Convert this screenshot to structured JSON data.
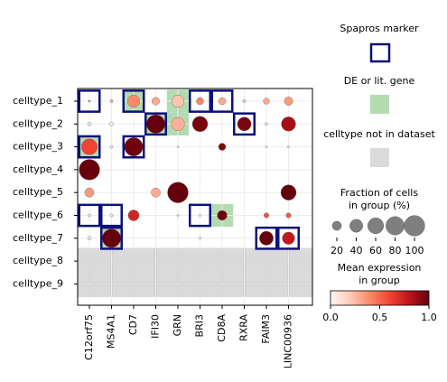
{
  "chart_data": {
    "type": "dotplot",
    "rows": [
      "celltype_1",
      "celltype_2",
      "celltype_3",
      "celltype_4",
      "celltype_5",
      "celltype_6",
      "celltype_7",
      "celltype_8",
      "celltype_9"
    ],
    "columns": [
      "C12orf75",
      "MS4A1",
      "CD7",
      "IFI30",
      "GRN",
      "BRI3",
      "CD8A",
      "RXRA",
      "FAIM3",
      "LINC00936"
    ],
    "dots": [
      {
        "row": "celltype_1",
        "col": "C12orf75",
        "fraction": 1,
        "expression": 0.4
      },
      {
        "row": "celltype_1",
        "col": "MS4A1",
        "fraction": 2,
        "expression": 0.3
      },
      {
        "row": "celltype_1",
        "col": "CD7",
        "fraction": 36,
        "expression": 0.4
      },
      {
        "row": "celltype_1",
        "col": "IFI30",
        "fraction": 14,
        "expression": 0.3
      },
      {
        "row": "celltype_1",
        "col": "GRN",
        "fraction": 36,
        "expression": 0.22
      },
      {
        "row": "celltype_1",
        "col": "BRI3",
        "fraction": 12,
        "expression": 0.42
      },
      {
        "row": "celltype_1",
        "col": "CD8A",
        "fraction": 12,
        "expression": 0.3
      },
      {
        "row": "celltype_1",
        "col": "RXRA",
        "fraction": 2,
        "expression": 0.2
      },
      {
        "row": "celltype_1",
        "col": "FAIM3",
        "fraction": 9,
        "expression": 0.3
      },
      {
        "row": "celltype_1",
        "col": "LINC00936",
        "fraction": 17,
        "expression": 0.35
      },
      {
        "row": "celltype_2",
        "col": "C12orf75",
        "fraction": 3,
        "expression": 0.05
      },
      {
        "row": "celltype_2",
        "col": "MS4A1",
        "fraction": 4,
        "expression": 0.05
      },
      {
        "row": "celltype_2",
        "col": "IFI30",
        "fraction": 80,
        "expression": 1.0
      },
      {
        "row": "celltype_2",
        "col": "GRN",
        "fraction": 42,
        "expression": 0.28
      },
      {
        "row": "celltype_2",
        "col": "BRI3",
        "fraction": 55,
        "expression": 0.96
      },
      {
        "row": "celltype_2",
        "col": "RXRA",
        "fraction": 44,
        "expression": 0.95
      },
      {
        "row": "celltype_2",
        "col": "FAIM3",
        "fraction": 2,
        "expression": 0.1
      },
      {
        "row": "celltype_2",
        "col": "LINC00936",
        "fraction": 48,
        "expression": 0.85
      },
      {
        "row": "celltype_3",
        "col": "C12orf75",
        "fraction": 60,
        "expression": 0.6
      },
      {
        "row": "celltype_3",
        "col": "MS4A1",
        "fraction": 2,
        "expression": 0.05
      },
      {
        "row": "celltype_3",
        "col": "CD7",
        "fraction": 80,
        "expression": 0.98
      },
      {
        "row": "celltype_3",
        "col": "GRN",
        "fraction": 1,
        "expression": 0.05
      },
      {
        "row": "celltype_3",
        "col": "CD8A",
        "fraction": 12,
        "expression": 0.95
      },
      {
        "row": "celltype_3",
        "col": "FAIM3",
        "fraction": 1,
        "expression": 0.05
      },
      {
        "row": "celltype_3",
        "col": "LINC00936",
        "fraction": 1,
        "expression": 0.05
      },
      {
        "row": "celltype_4",
        "col": "C12orf75",
        "fraction": 100,
        "expression": 1.0
      },
      {
        "row": "celltype_5",
        "col": "C12orf75",
        "fraction": 20,
        "expression": 0.35
      },
      {
        "row": "celltype_5",
        "col": "IFI30",
        "fraction": 20,
        "expression": 0.3
      },
      {
        "row": "celltype_5",
        "col": "GRN",
        "fraction": 100,
        "expression": 1.0
      },
      {
        "row": "celltype_5",
        "col": "LINC00936",
        "fraction": 55,
        "expression": 1.0
      },
      {
        "row": "celltype_6",
        "col": "C12orf75",
        "fraction": 2,
        "expression": 0.05
      },
      {
        "row": "celltype_6",
        "col": "MS4A1",
        "fraction": 2,
        "expression": 0.05
      },
      {
        "row": "celltype_6",
        "col": "CD7",
        "fraction": 28,
        "expression": 0.72
      },
      {
        "row": "celltype_6",
        "col": "GRN",
        "fraction": 1,
        "expression": 0.1
      },
      {
        "row": "celltype_6",
        "col": "BRI3",
        "fraction": 1,
        "expression": 0.05
      },
      {
        "row": "celltype_6",
        "col": "CD8A",
        "fraction": 22,
        "expression": 0.98
      },
      {
        "row": "celltype_6",
        "col": "FAIM3",
        "fraction": 6,
        "expression": 0.55
      },
      {
        "row": "celltype_6",
        "col": "LINC00936",
        "fraction": 6,
        "expression": 0.55
      },
      {
        "row": "celltype_7",
        "col": "C12orf75",
        "fraction": 3,
        "expression": 0.05
      },
      {
        "row": "celltype_7",
        "col": "MS4A1",
        "fraction": 80,
        "expression": 1.0
      },
      {
        "row": "celltype_7",
        "col": "BRI3",
        "fraction": 1,
        "expression": 0.05
      },
      {
        "row": "celltype_7",
        "col": "FAIM3",
        "fraction": 45,
        "expression": 1.0
      },
      {
        "row": "celltype_7",
        "col": "LINC00936",
        "fraction": 36,
        "expression": 0.78
      }
    ],
    "spapros_markers": [
      {
        "row": "celltype_1",
        "col": "C12orf75"
      },
      {
        "row": "celltype_1",
        "col": "CD7"
      },
      {
        "row": "celltype_1",
        "col": "BRI3"
      },
      {
        "row": "celltype_1",
        "col": "CD8A"
      },
      {
        "row": "celltype_2",
        "col": "IFI30"
      },
      {
        "row": "celltype_2",
        "col": "RXRA"
      },
      {
        "row": "celltype_3",
        "col": "C12orf75"
      },
      {
        "row": "celltype_3",
        "col": "CD7"
      },
      {
        "row": "celltype_6",
        "col": "C12orf75"
      },
      {
        "row": "celltype_6",
        "col": "MS4A1"
      },
      {
        "row": "celltype_6",
        "col": "BRI3"
      },
      {
        "row": "celltype_7",
        "col": "MS4A1"
      },
      {
        "row": "celltype_7",
        "col": "FAIM3"
      },
      {
        "row": "celltype_7",
        "col": "LINC00936"
      }
    ],
    "de_genes": [
      {
        "row": "celltype_1",
        "col": "CD7"
      },
      {
        "row": "celltype_1",
        "col": "GRN"
      },
      {
        "row": "celltype_2",
        "col": "IFI30"
      },
      {
        "row": "celltype_2",
        "col": "GRN"
      },
      {
        "row": "celltype_3",
        "col": "C12orf75"
      },
      {
        "row": "celltype_6",
        "col": "CD8A"
      },
      {
        "row": "celltype_7",
        "col": "MS4A1"
      }
    ],
    "not_in_dataset": [
      "celltype_8",
      "celltype_9"
    ],
    "legend": {
      "spapros_label": "Spapros marker",
      "de_label": "DE or lit. gene",
      "missing_label": "celltype not in dataset",
      "fraction_title_1": "Fraction of cells",
      "fraction_title_2": "in group (%)",
      "fraction_ticks": [
        20,
        40,
        60,
        80,
        100
      ],
      "expression_title_1": "Mean expression",
      "expression_title_2": "in group",
      "expression_ticks": [
        "0.0",
        "0.5",
        "1.0"
      ]
    },
    "colors": {
      "marker_box": "#0d117a",
      "de_fill": "#b3dbb0",
      "missing_fill": "#dadada",
      "colormap": [
        "#fff5f0",
        "#fdcab5",
        "#fc8a6a",
        "#f14432",
        "#bc141a",
        "#67000d"
      ]
    }
  }
}
